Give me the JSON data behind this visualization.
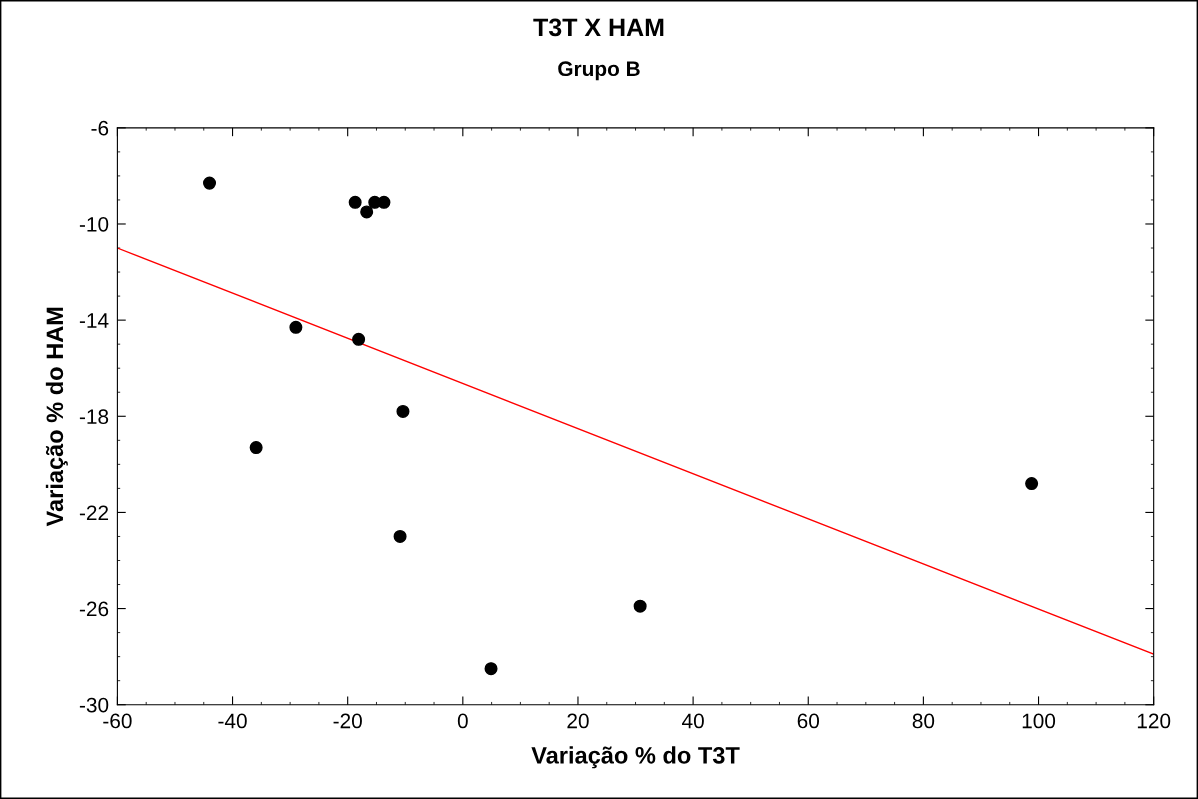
{
  "chart_data": {
    "type": "scatter",
    "title": "T3T X HAM",
    "subtitle": "Grupo B",
    "xlabel": "Variação % do T3T",
    "ylabel": "Variação % do HAM",
    "xlim": [
      -60,
      120
    ],
    "xticks": [
      -60,
      -40,
      -20,
      0,
      20,
      40,
      60,
      80,
      100,
      120
    ],
    "ylim": [
      -30,
      -6
    ],
    "yticks": [
      -30,
      -26,
      -22,
      -18,
      -14,
      -10,
      -6
    ],
    "grid": false,
    "series": [
      {
        "color": "#000000",
        "marker": "circle",
        "x": [
          -44.0,
          -18.7,
          -15.3,
          -13.7,
          -16.7,
          -29.0,
          -18.1,
          -10.4,
          -35.9,
          98.8,
          -10.9,
          30.8,
          4.9
        ],
        "values": [
          -8.3,
          -9.1,
          -9.1,
          -9.1,
          -9.5,
          -14.3,
          -14.8,
          -17.8,
          -19.3,
          -20.8,
          -23.0,
          -25.9,
          -28.5
        ]
      },
      {
        "type": "line",
        "color": "#ff0000",
        "marker": "none",
        "line_style": "solid",
        "x": [
          -60,
          120
        ],
        "values": [
          -11.0,
          -27.9
        ]
      }
    ]
  }
}
